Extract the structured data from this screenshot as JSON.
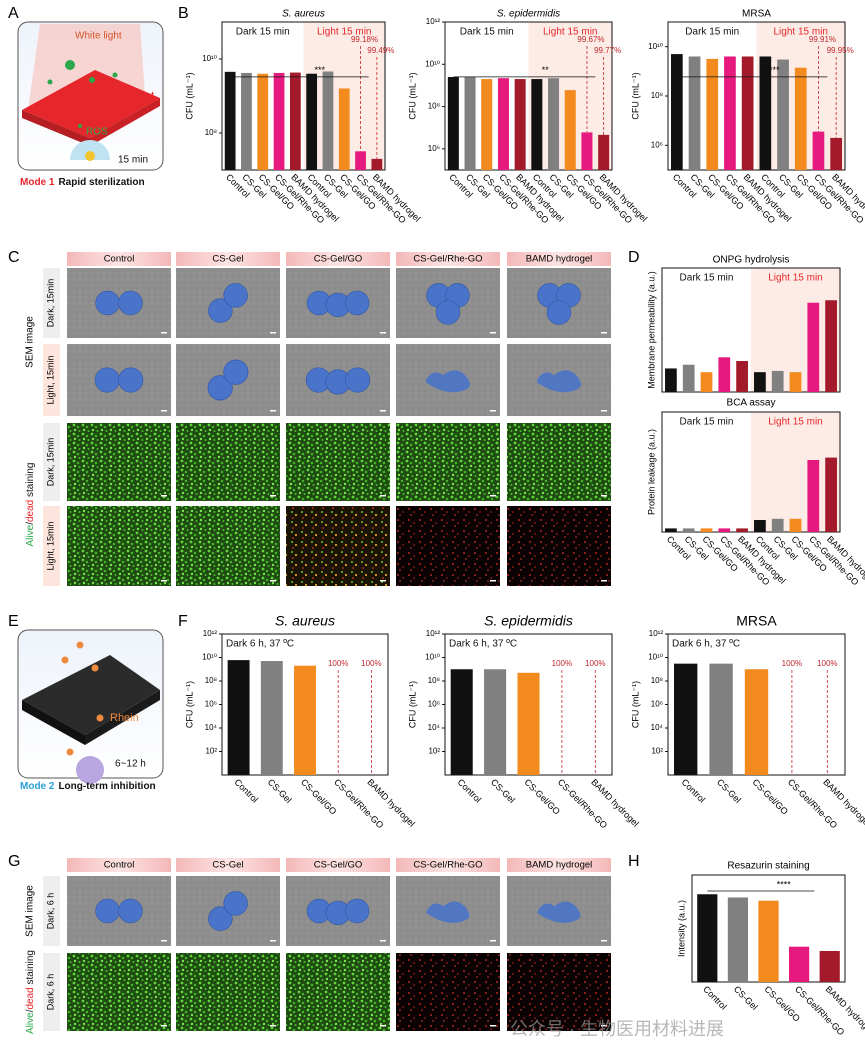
{
  "panel_labels": [
    "A",
    "B",
    "C",
    "D",
    "E",
    "F",
    "G",
    "H"
  ],
  "mode1": {
    "light": "White light",
    "heat": "Heat",
    "ros": "ROS",
    "time": "15 min",
    "mode": "Mode 1",
    "caption": "Rapid sterilization"
  },
  "mode2": {
    "drug": "Rhein",
    "time": "6~12 h",
    "mode": "Mode 2",
    "caption": "Long-term inhibition"
  },
  "panel_c": {
    "headers": [
      "Control",
      "CS-Gel",
      "CS-Gel/GO",
      "CS-Gel/Rhe-GO",
      "BAMD hydrogel"
    ],
    "row_labels": [
      "Dark, 15min",
      "Light, 15min",
      "Dark, 15min",
      "Light, 15min"
    ],
    "sem_label": "SEM image",
    "staining_label": [
      "Alive",
      "/",
      "dead",
      " staining"
    ]
  },
  "panel_g": {
    "headers": [
      "Control",
      "CS-Gel",
      "CS-Gel/GO",
      "CS-Gel/Rhe-GO",
      "BAMD hydrogel"
    ],
    "row_labels": [
      "Dark, 6 h",
      "Dark, 6 h"
    ],
    "sem_label": "SEM image",
    "staining_label": [
      "Alive",
      "/",
      "dead",
      " staining"
    ]
  },
  "chart_data": [
    {
      "type": "bar",
      "title": "S. aureus",
      "title_italic": true,
      "ylabel": "CFU (mL⁻¹)",
      "conditions": [
        "Dark 15 min",
        "Light 15 min"
      ],
      "categories": [
        "Control",
        "CS-Gel",
        "CS-Gel/GO",
        "CS-Gel/Rhe-GO",
        "BAMD hydrogel",
        "Control",
        "CS-Gel",
        "CS-Gel/GO",
        "CS-Gel/Rhe-GO",
        "BAMD hydrogel"
      ],
      "values": [
        4500000000.0,
        4200000000.0,
        4000000000.0,
        4200000000.0,
        4300000000.0,
        4000000000.0,
        4600000000.0,
        1600000000.0,
        32000000.0,
        20000000.0
      ],
      "colors": [
        "#111111",
        "#808080",
        "#f28a1e",
        "#e6197e",
        "#a31b2a",
        "#111111",
        "#808080",
        "#f28a1e",
        "#e6197e",
        "#a31b2a"
      ],
      "log_scale": true,
      "ylim": [
        10000000.0,
        100000000000.0
      ],
      "yticks": [
        {
          "value": 100000000.0,
          "label": "10⁸"
        },
        {
          "value": 10000000000.0,
          "label": "10¹⁰"
        }
      ],
      "kill_labels": [
        "99.18%",
        "99.49%"
      ],
      "significance": "***"
    },
    {
      "type": "bar",
      "title": "S. epidermidis",
      "title_italic": true,
      "ylabel": "CFU (mL⁻¹)",
      "conditions": [
        "Dark 15 min",
        "Light 15 min"
      ],
      "categories": [
        "Control",
        "CS-Gel",
        "CS-Gel/GO",
        "CS-Gel/Rhe-GO",
        "BAMD hydrogel",
        "Control",
        "CS-Gel",
        "CS-Gel/GO",
        "CS-Gel/Rhe-GO",
        "BAMD hydrogel"
      ],
      "values": [
        2500000000.0,
        2600000000.0,
        2000000000.0,
        2200000000.0,
        2000000000.0,
        2000000000.0,
        2200000000.0,
        600000000.0,
        6000000.0,
        4600000.0
      ],
      "colors": [
        "#111111",
        "#808080",
        "#f28a1e",
        "#e6197e",
        "#a31b2a",
        "#111111",
        "#808080",
        "#f28a1e",
        "#e6197e",
        "#a31b2a"
      ],
      "log_scale": true,
      "ylim": [
        100000.0,
        1000000000000.0
      ],
      "yticks": [
        {
          "value": 1000000.0,
          "label": "10⁶"
        },
        {
          "value": 100000000.0,
          "label": "10⁸"
        },
        {
          "value": 10000000000.0,
          "label": "10¹⁰"
        },
        {
          "value": 1000000000000.0,
          "label": "10¹²"
        }
      ],
      "kill_labels": [
        "99.67%",
        "99.77%"
      ],
      "significance": "**"
    },
    {
      "type": "bar",
      "title": "MRSA",
      "title_italic": false,
      "ylabel": "CFU (mL⁻¹)",
      "conditions": [
        "Dark 15 min",
        "Light 15 min"
      ],
      "categories": [
        "Control",
        "CS-Gel",
        "CS-Gel/GO",
        "CS-Gel/Rhe-GO",
        "BAMD hydrogel",
        "Control",
        "CS-Gel",
        "CS-Gel/GO",
        "CS-Gel/Rhe-GO",
        "BAMD hydrogel"
      ],
      "values": [
        5000000000.0,
        4000000000.0,
        3200000000.0,
        4000000000.0,
        4000000000.0,
        4000000000.0,
        3000000000.0,
        1400000000.0,
        3600000.0,
        2000000.0
      ],
      "colors": [
        "#111111",
        "#808080",
        "#f28a1e",
        "#e6197e",
        "#a31b2a",
        "#111111",
        "#808080",
        "#f28a1e",
        "#e6197e",
        "#a31b2a"
      ],
      "log_scale": true,
      "ylim": [
        100000.0,
        100000000000.0
      ],
      "yticks": [
        {
          "value": 1000000.0,
          "label": "10⁶"
        },
        {
          "value": 100000000.0,
          "label": "10⁸"
        },
        {
          "value": 10000000000.0,
          "label": "10¹⁰"
        }
      ],
      "kill_labels": [
        "99.91%",
        "99.95%"
      ],
      "significance": "***"
    },
    {
      "type": "bar",
      "title": "ONPG hydrolysis",
      "title_italic": false,
      "ylabel": "Membrane permeability (a.u.)",
      "conditions": [
        "Dark 15 min",
        "Light 15 min"
      ],
      "categories": [
        null,
        null,
        null,
        null,
        null,
        null,
        null,
        null,
        null,
        null
      ],
      "values": [
        1.9,
        2.2,
        1.6,
        2.8,
        2.5,
        1.6,
        1.7,
        1.6,
        7.2,
        7.4
      ],
      "colors": [
        "#111111",
        "#808080",
        "#f28a1e",
        "#e6197e",
        "#a31b2a",
        "#111111",
        "#808080",
        "#f28a1e",
        "#e6197e",
        "#a31b2a"
      ],
      "log_scale": false,
      "ylim": [
        0,
        10
      ]
    },
    {
      "type": "bar",
      "title": "BCA assay",
      "title_italic": false,
      "ylabel": "Protein leakage (a.u.)",
      "conditions": [
        "Dark 15 min",
        "Light 15 min"
      ],
      "categories": [
        "Control",
        "CS-Gel",
        "CS-Gel/GO",
        "CS-Gel/Rhe-GO",
        "BAMD hydrogel",
        "Control",
        "CS-Gel",
        "CS-Gel/GO",
        "CS-Gel/Rhe-GO",
        "BAMD hydrogel"
      ],
      "values": [
        0.3,
        0.3,
        0.3,
        0.3,
        0.3,
        1.0,
        1.1,
        1.1,
        6.0,
        6.2
      ],
      "colors": [
        "#111111",
        "#808080",
        "#f28a1e",
        "#e6197e",
        "#a31b2a",
        "#111111",
        "#808080",
        "#f28a1e",
        "#e6197e",
        "#a31b2a"
      ],
      "log_scale": false,
      "ylim": [
        0,
        10
      ]
    },
    {
      "type": "bar",
      "title": "S. aureus",
      "title_italic": true,
      "ylabel": "CFU (mL⁻¹)",
      "conditions": [
        "Dark 6 h, 37 ºC"
      ],
      "categories": [
        "Control",
        "CS-Gel",
        "CS-Gel/GO",
        "CS-Gel/Rhe-GO",
        "BAMD hydrogel"
      ],
      "values": [
        6000000000.0,
        5000000000.0,
        2000000000.0,
        null,
        null
      ],
      "colors": [
        "#111111",
        "#808080",
        "#f28a1e",
        "#e6197e",
        "#a31b2a"
      ],
      "log_scale": true,
      "ylim": [
        1,
        1000000000000.0
      ],
      "yticks": [
        {
          "value": 100.0,
          "label": "10²"
        },
        {
          "value": 10000.0,
          "label": "10⁴"
        },
        {
          "value": 1000000.0,
          "label": "10⁶"
        },
        {
          "value": 100000000.0,
          "label": "10⁸"
        },
        {
          "value": 10000000000.0,
          "label": "10¹⁰"
        },
        {
          "value": 1000000000000.0,
          "label": "10¹²"
        }
      ],
      "kill_labels": [
        "100%",
        "100%"
      ]
    },
    {
      "type": "bar",
      "title": "S. epidermidis",
      "title_italic": true,
      "ylabel": "CFU (mL⁻¹)",
      "conditions": [
        "Dark 6 h, 37 ºC"
      ],
      "categories": [
        "Control",
        "CS-Gel",
        "CS-Gel/GO",
        "CS-Gel/Rhe-GO",
        "BAMD hydrogel"
      ],
      "values": [
        1000000000.0,
        1000000000.0,
        500000000.0,
        null,
        null
      ],
      "colors": [
        "#111111",
        "#808080",
        "#f28a1e",
        "#e6197e",
        "#a31b2a"
      ],
      "log_scale": true,
      "ylim": [
        1,
        1000000000000.0
      ],
      "yticks": [
        {
          "value": 100.0,
          "label": "10²"
        },
        {
          "value": 10000.0,
          "label": "10⁴"
        },
        {
          "value": 1000000.0,
          "label": "10⁶"
        },
        {
          "value": 100000000.0,
          "label": "10⁸"
        },
        {
          "value": 10000000000.0,
          "label": "10¹⁰"
        },
        {
          "value": 1000000000000.0,
          "label": "10¹²"
        }
      ],
      "kill_labels": [
        "100%",
        "100%"
      ]
    },
    {
      "type": "bar",
      "title": "MRSA",
      "title_italic": false,
      "ylabel": "CFU (mL⁻¹)",
      "conditions": [
        "Dark 6 h, 37 ºC"
      ],
      "categories": [
        "Control",
        "CS-Gel",
        "CS-Gel/GO",
        "CS-Gel/Rhe-GO",
        "BAMD hydrogel"
      ],
      "values": [
        3000000000.0,
        3000000000.0,
        1000000000.0,
        null,
        null
      ],
      "colors": [
        "#111111",
        "#808080",
        "#f28a1e",
        "#e6197e",
        "#a31b2a"
      ],
      "log_scale": true,
      "ylim": [
        1,
        1000000000000.0
      ],
      "yticks": [
        {
          "value": 100.0,
          "label": "10²"
        },
        {
          "value": 10000.0,
          "label": "10⁴"
        },
        {
          "value": 1000000.0,
          "label": "10⁶"
        },
        {
          "value": 100000000.0,
          "label": "10⁸"
        },
        {
          "value": 10000000000.0,
          "label": "10¹⁰"
        },
        {
          "value": 1000000000000.0,
          "label": "10¹²"
        }
      ],
      "kill_labels": [
        "100%",
        "100%"
      ]
    },
    {
      "type": "bar",
      "title": "Resazurin staining",
      "title_italic": false,
      "ylabel": "Intensity (a.u.)",
      "categories": [
        "Control",
        "CS-Gel",
        "CS-Gel/GO",
        "CS-Gel/Rhe-GO",
        "BAMD hydrogel"
      ],
      "values": [
        8.2,
        7.9,
        7.6,
        3.3,
        2.9
      ],
      "colors": [
        "#111111",
        "#808080",
        "#f28a1e",
        "#e6197e",
        "#a31b2a"
      ],
      "log_scale": false,
      "ylim": [
        0,
        10
      ],
      "significance": "****"
    }
  ],
  "watermark": "公众号 · 生物医用材料进展"
}
